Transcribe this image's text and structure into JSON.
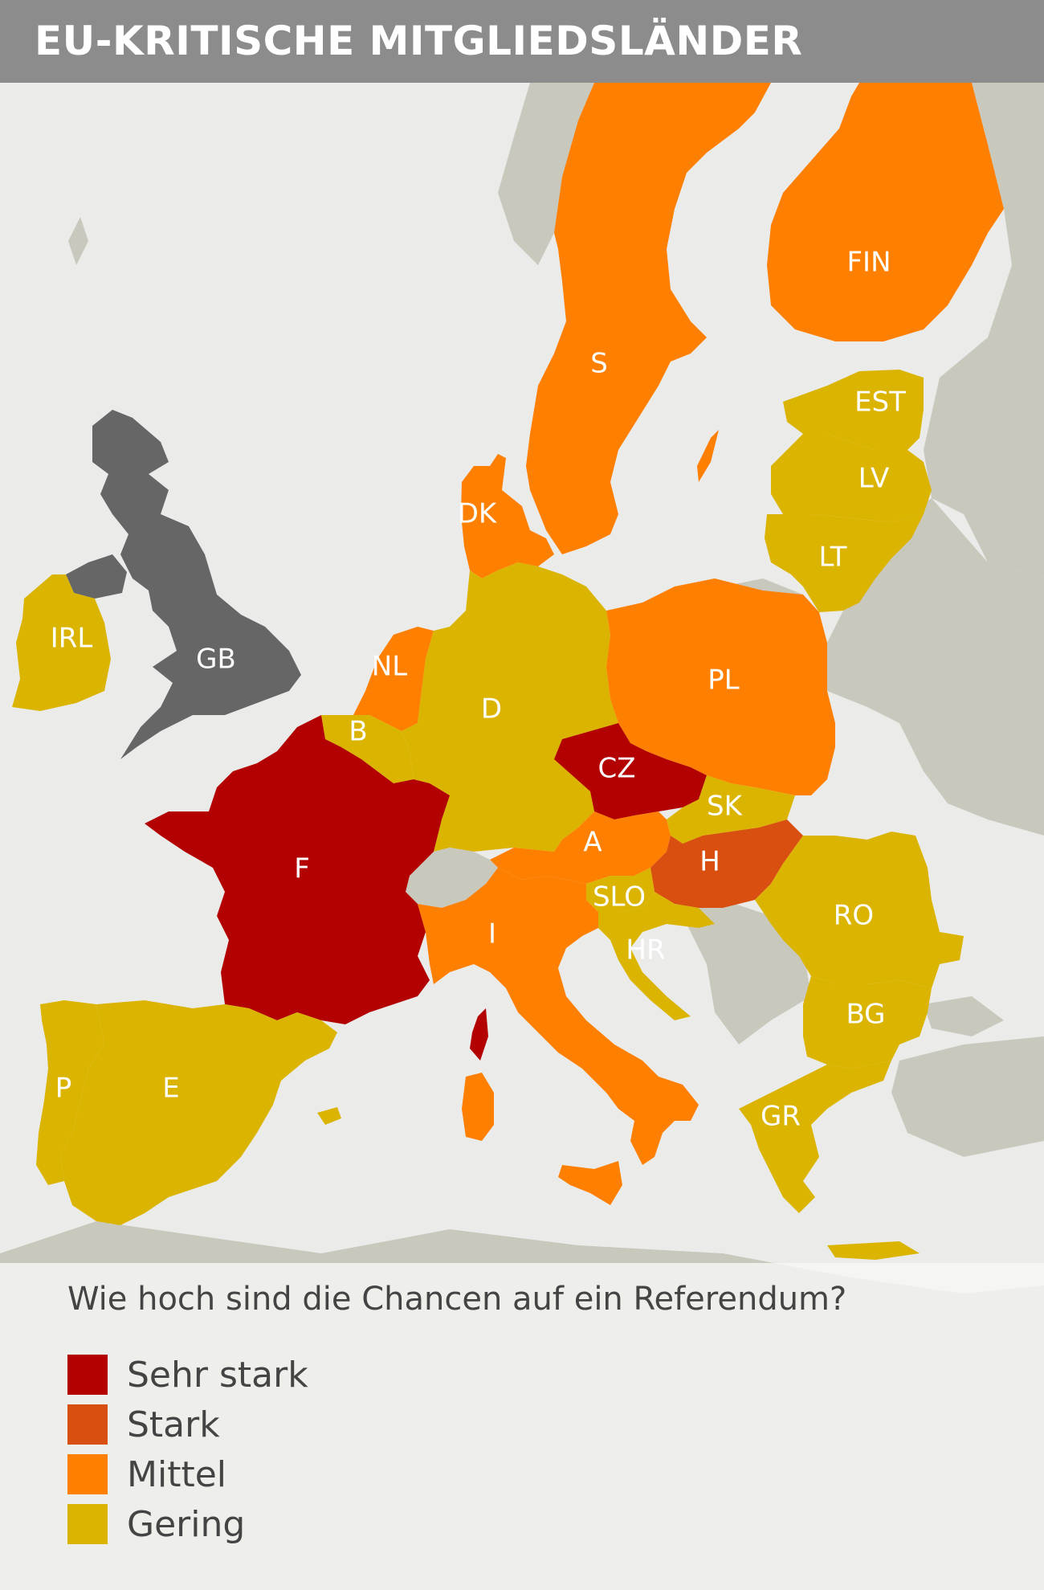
{
  "title": "EU-KRITISCHE MITGLIEDSLÄNDER",
  "colors": {
    "sehr_stark": "#b30000",
    "stark": "#d94f0f",
    "mittel": "#ff7f00",
    "gering": "#dbb400",
    "non_eu": "#c9c8bd",
    "uk": "#666666",
    "sea": "#ebebea"
  },
  "legend": {
    "question": "Wie hoch sind die Chancen auf ein Referendum?",
    "items": [
      {
        "label": "Sehr stark",
        "color": "#b30000"
      },
      {
        "label": "Stark",
        "color": "#d94f0f"
      },
      {
        "label": "Mittel",
        "color": "#ff7f00"
      },
      {
        "label": "Gering",
        "color": "#dbb400"
      }
    ]
  },
  "countries": {
    "fin": {
      "label": "FIN",
      "category": "Mittel"
    },
    "s": {
      "label": "S",
      "category": "Mittel"
    },
    "est": {
      "label": "EST",
      "category": "Gering"
    },
    "lv": {
      "label": "LV",
      "category": "Gering"
    },
    "lt": {
      "label": "LT",
      "category": "Gering"
    },
    "dk": {
      "label": "DK",
      "category": "Mittel"
    },
    "irl": {
      "label": "IRL",
      "category": "Gering"
    },
    "gb": {
      "label": "GB",
      "category": ""
    },
    "nl": {
      "label": "NL",
      "category": "Mittel"
    },
    "b": {
      "label": "B",
      "category": "Gering"
    },
    "d": {
      "label": "D",
      "category": "Gering"
    },
    "pl": {
      "label": "PL",
      "category": "Mittel"
    },
    "cz": {
      "label": "CZ",
      "category": "Sehr stark"
    },
    "sk": {
      "label": "SK",
      "category": "Gering"
    },
    "a": {
      "label": "A",
      "category": "Mittel"
    },
    "h": {
      "label": "H",
      "category": "Stark"
    },
    "f": {
      "label": "F",
      "category": "Sehr stark"
    },
    "slo": {
      "label": "SLO",
      "category": "Gering"
    },
    "hr": {
      "label": "HR",
      "category": "Gering"
    },
    "ro": {
      "label": "RO",
      "category": "Gering"
    },
    "i": {
      "label": "I",
      "category": "Mittel"
    },
    "bg": {
      "label": "BG",
      "category": "Gering"
    },
    "p": {
      "label": "P",
      "category": "Gering"
    },
    "e": {
      "label": "E",
      "category": "Gering"
    },
    "gr": {
      "label": "GR",
      "category": "Gering"
    }
  }
}
